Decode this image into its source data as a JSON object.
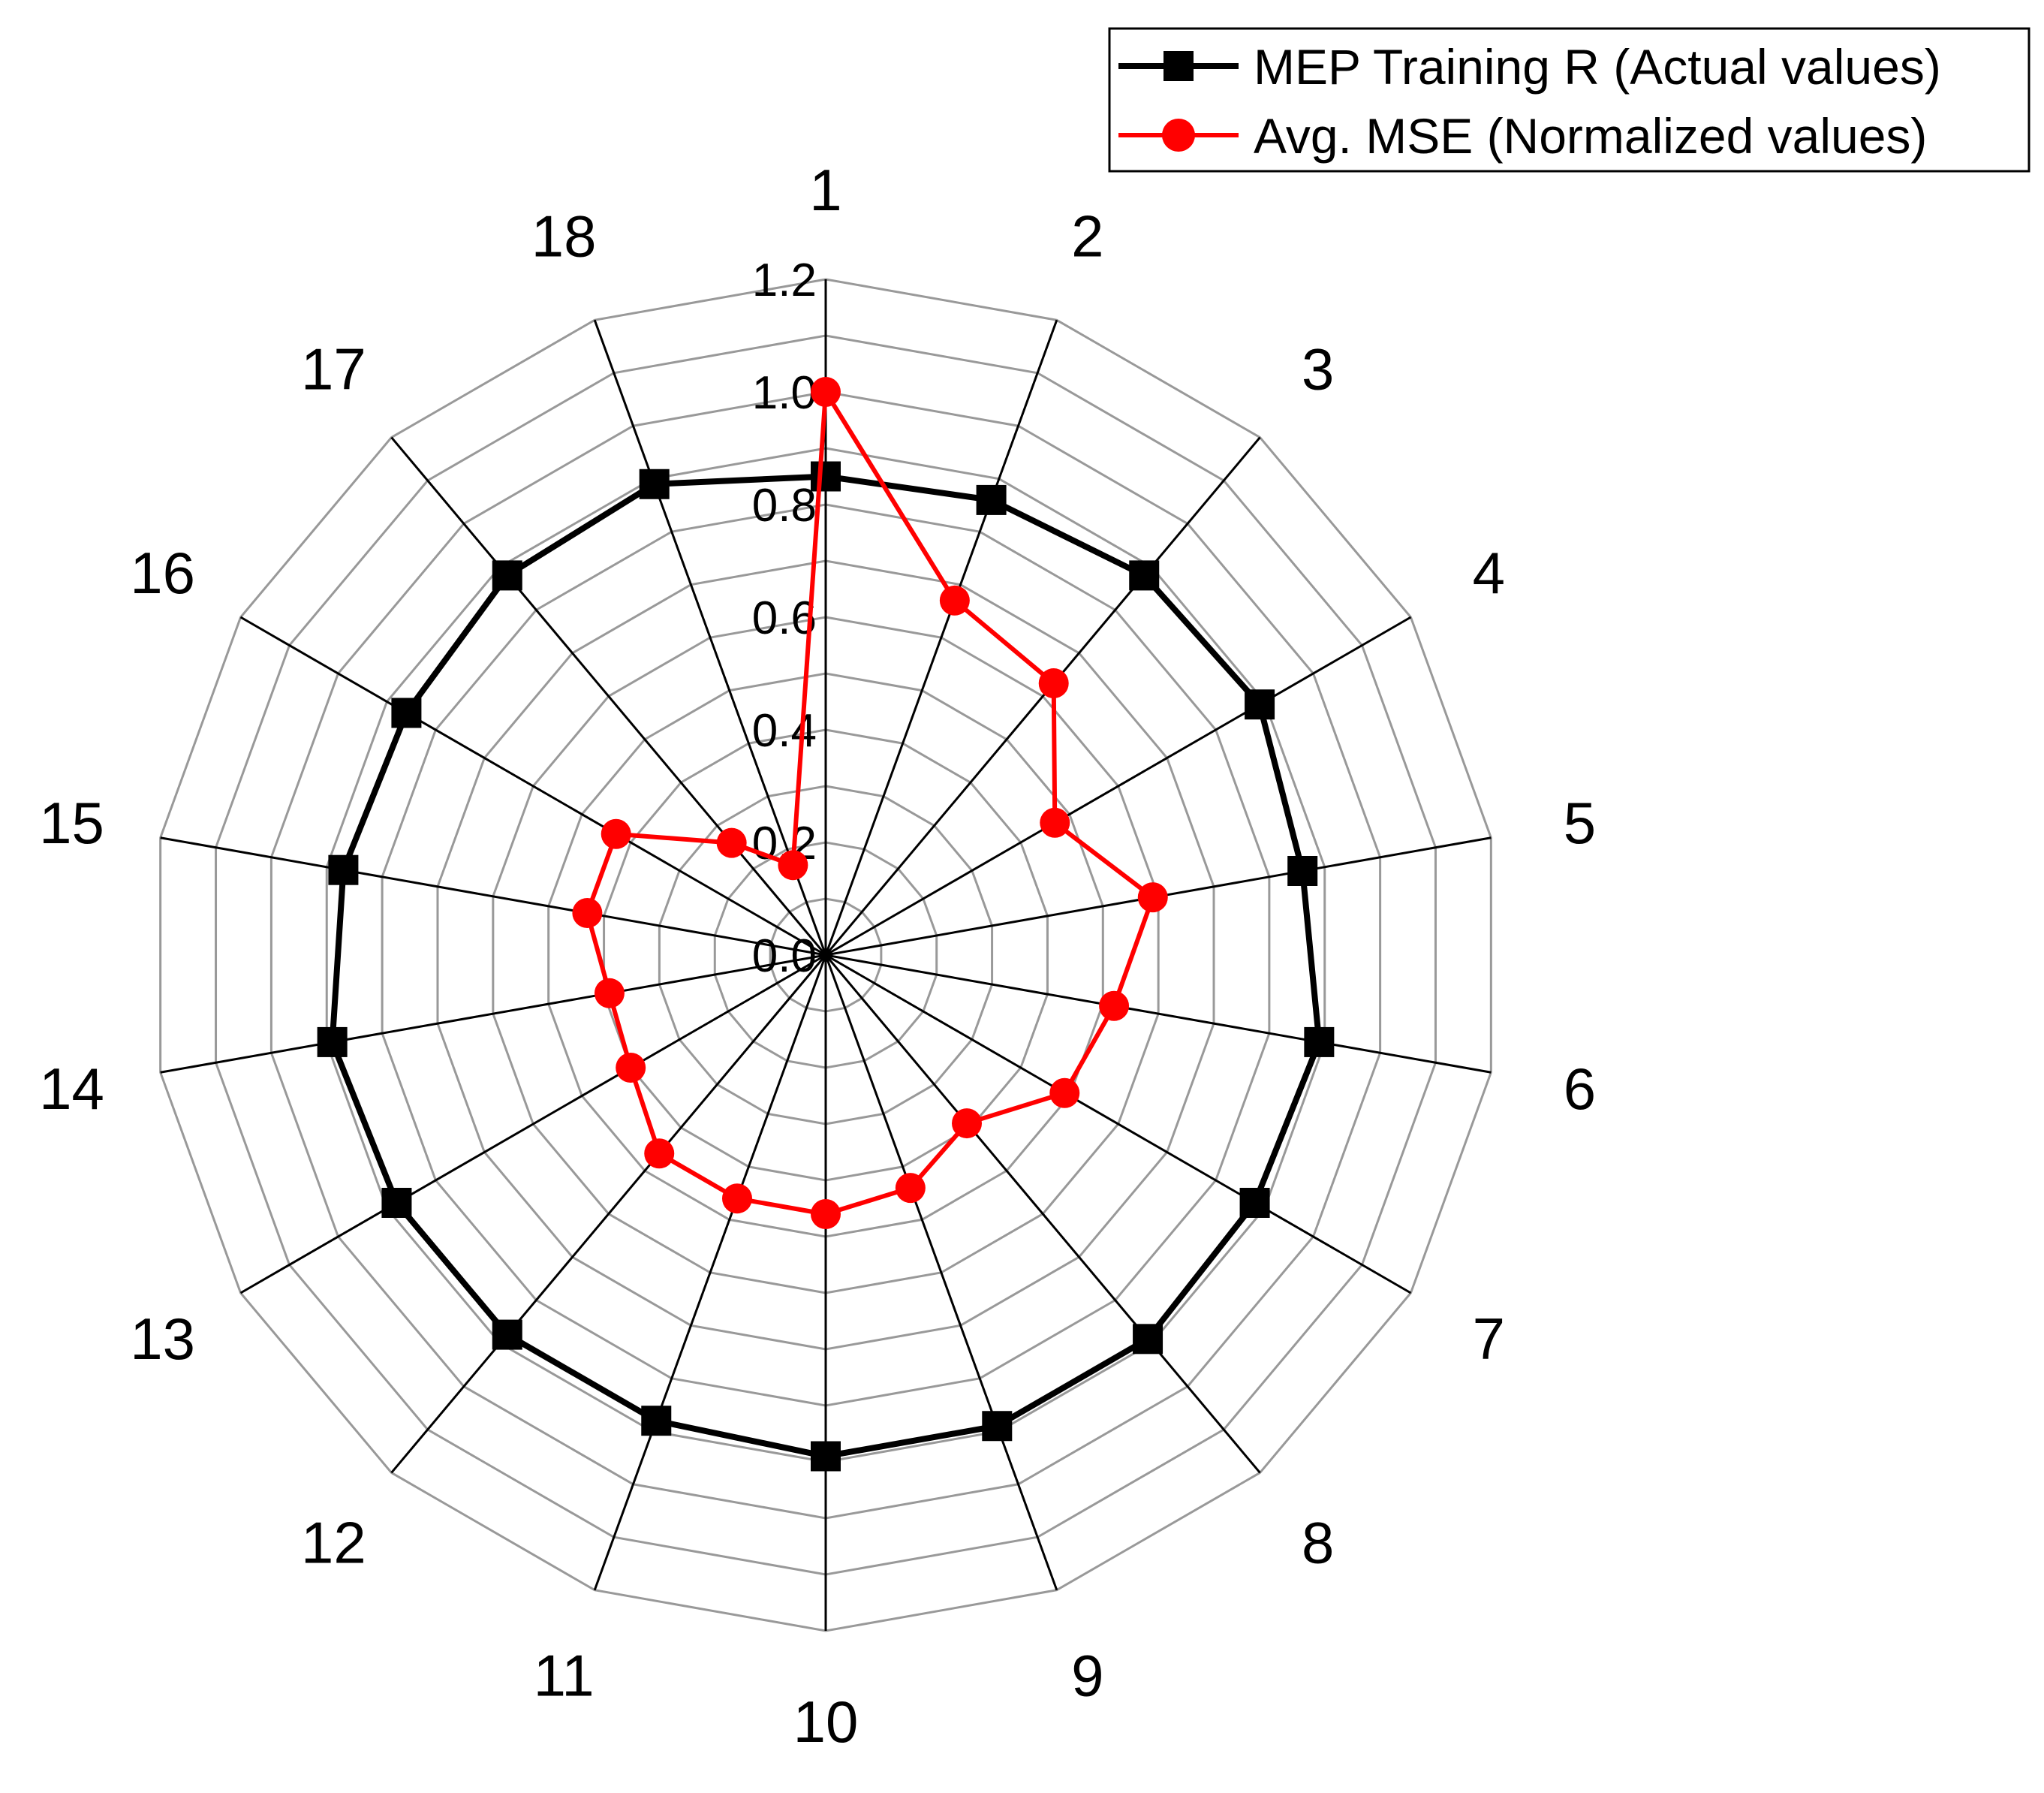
{
  "chart_data": {
    "type": "radar",
    "categories": [
      "1",
      "2",
      "3",
      "4",
      "5",
      "6",
      "7",
      "8",
      "9",
      "10",
      "11",
      "12",
      "13",
      "14",
      "15",
      "16",
      "17",
      "18"
    ],
    "radial_ticks": [
      "0.0",
      "0.2",
      "0.4",
      "0.6",
      "0.8",
      "1.0",
      "1.2"
    ],
    "rlim": [
      0,
      1.2
    ],
    "grid": true,
    "legend_position": "top-right",
    "series": [
      {
        "name": "MEP Training R (Actual values)",
        "color": "#000000",
        "marker": "square",
        "values": [
          0.85,
          0.86,
          0.88,
          0.89,
          0.86,
          0.89,
          0.88,
          0.89,
          0.89,
          0.89,
          0.88,
          0.88,
          0.88,
          0.89,
          0.87,
          0.86,
          0.88,
          0.89
        ]
      },
      {
        "name": "Avg. MSE (Normalized values)",
        "color": "#ff0000",
        "marker": "circle",
        "values": [
          1.0,
          0.67,
          0.63,
          0.47,
          0.59,
          0.52,
          0.49,
          0.39,
          0.44,
          0.46,
          0.46,
          0.46,
          0.4,
          0.39,
          0.43,
          0.43,
          0.26,
          0.17
        ]
      }
    ]
  }
}
